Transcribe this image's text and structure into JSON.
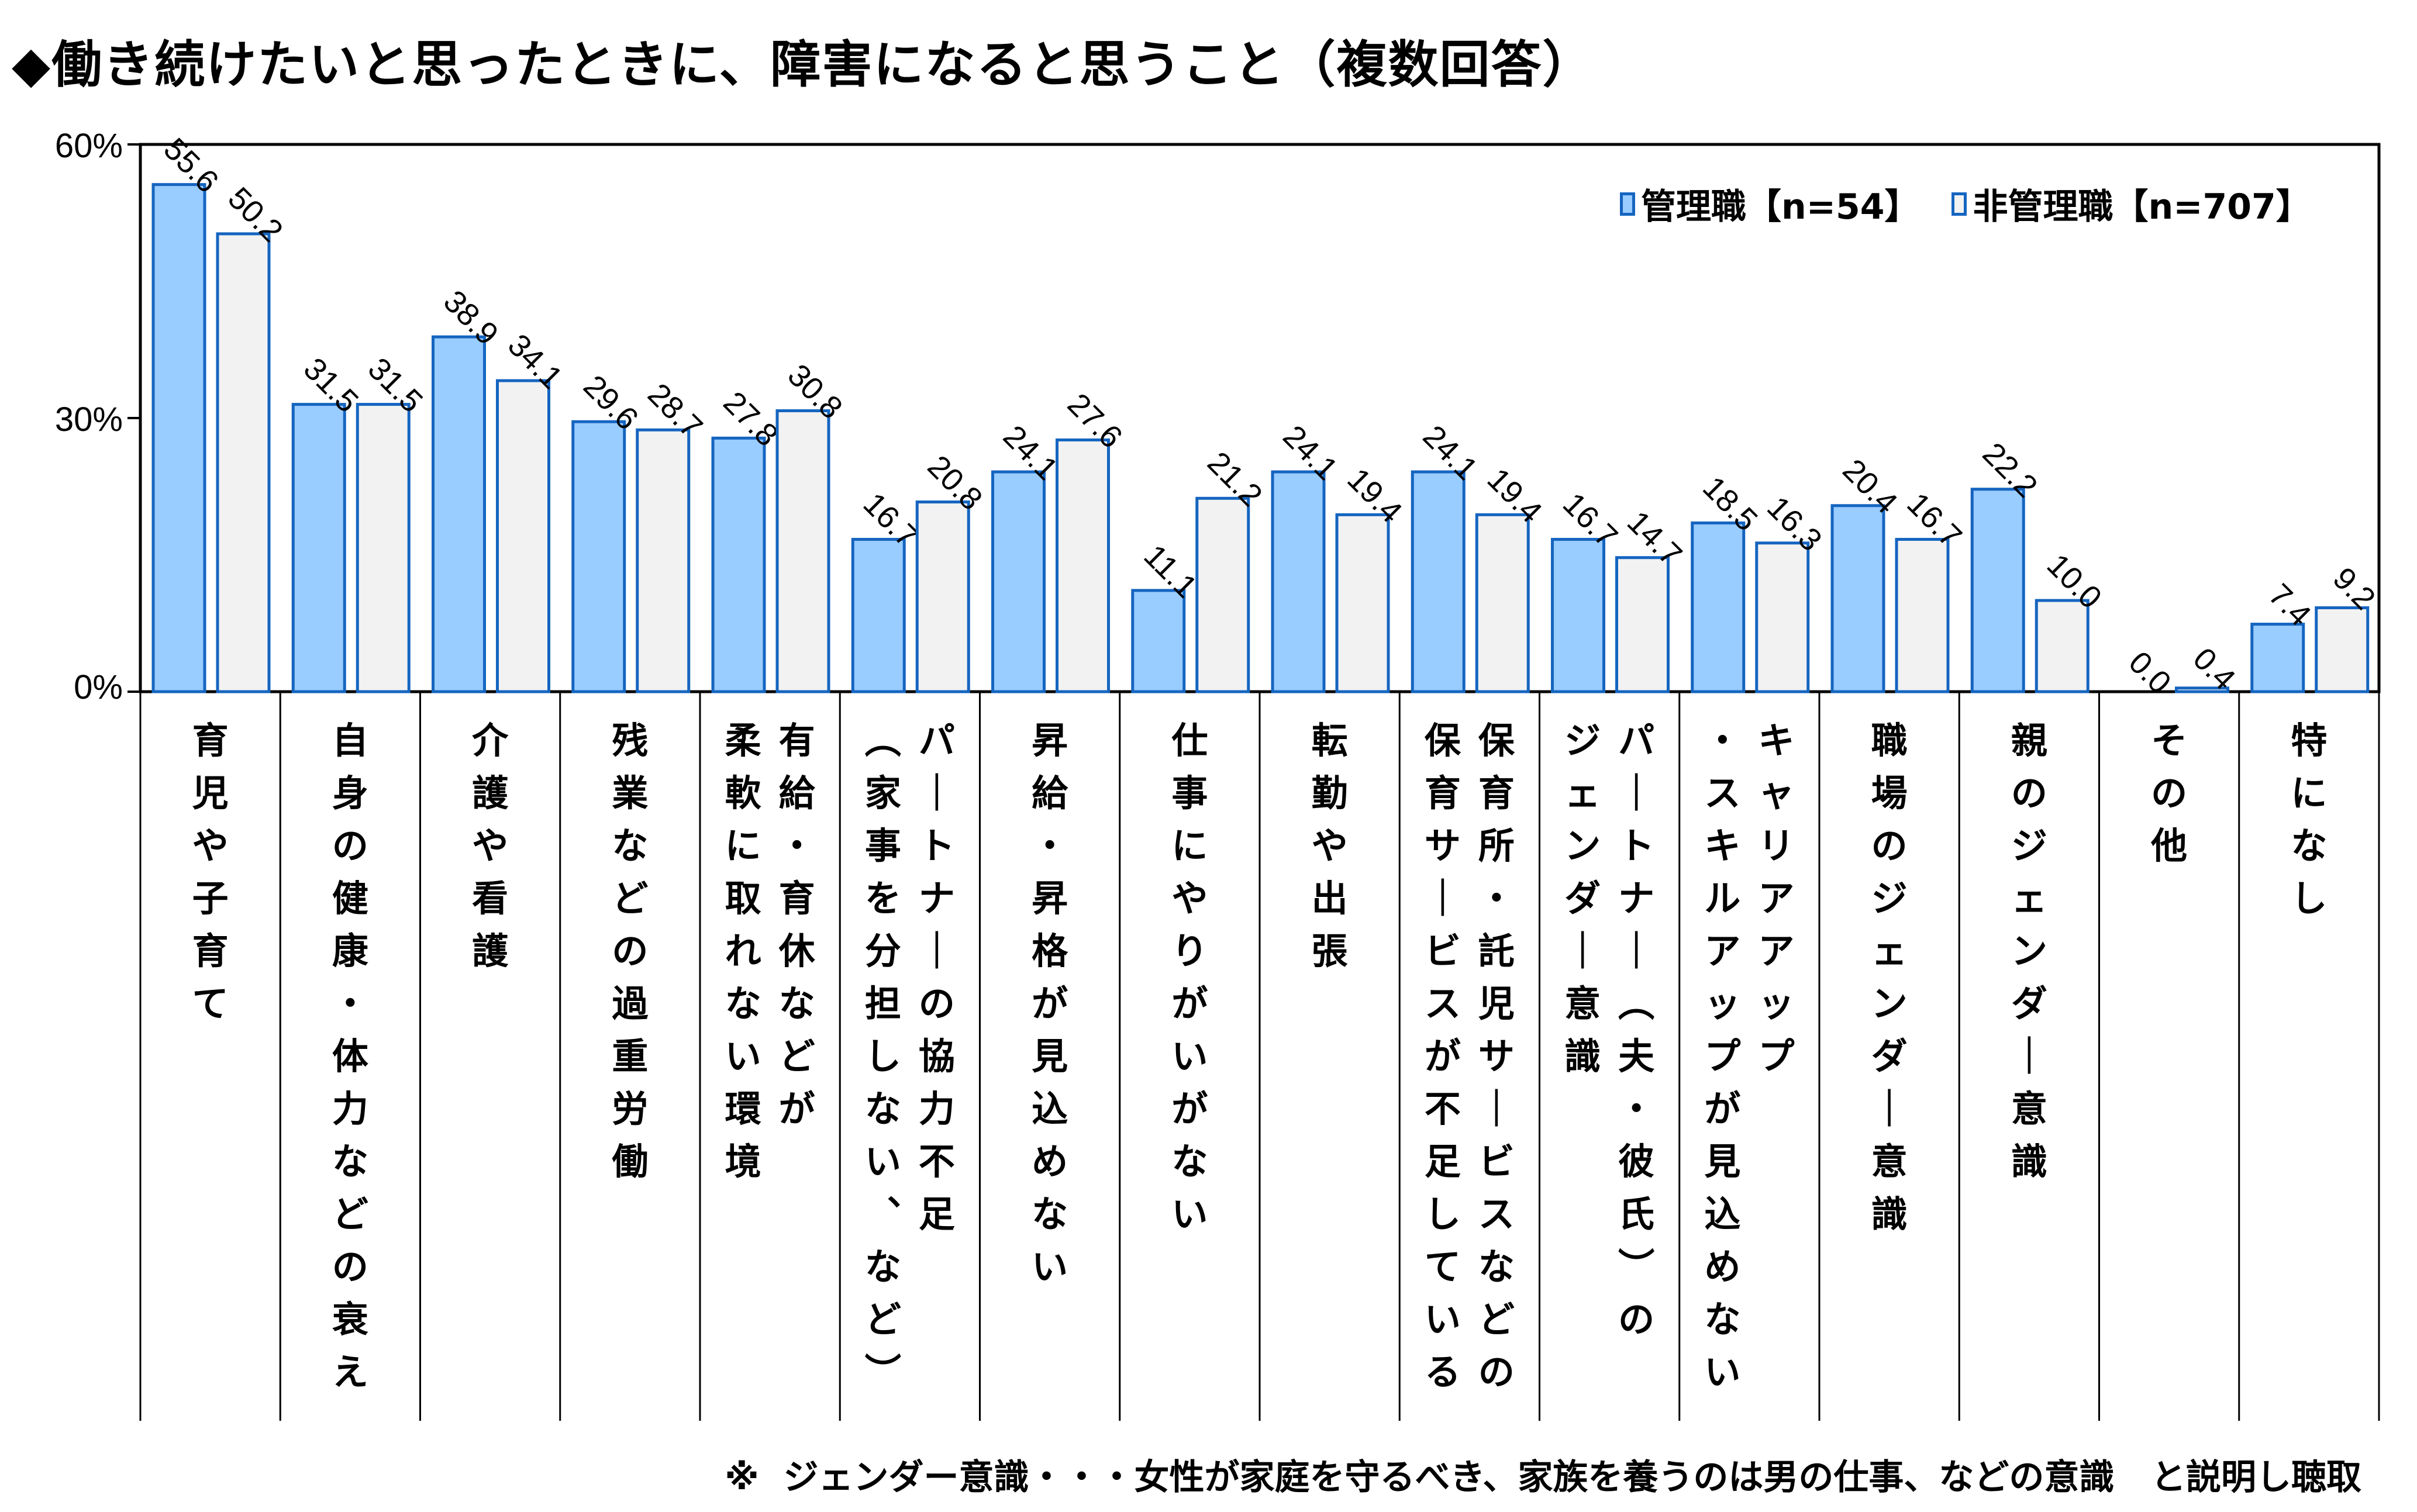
{
  "chart_data": {
    "type": "bar",
    "title": "◆働き続けたいと思ったときに、障害になると思うこと（複数回答）",
    "xlabel": "",
    "ylabel": "",
    "ylim": [
      0,
      60
    ],
    "yticks": [
      "0%",
      "30%",
      "60%"
    ],
    "categories": [
      "育児や子育て",
      "自身の健康・体力などの衰え",
      "介護や看護",
      "残業などの過重労働",
      "有給・育休などが柔軟に取れない環境",
      "パートナーの協力不足（家事を分担しない、など）",
      "昇給・昇格が見込めない",
      "仕事にやりがいがない",
      "転勤や出張",
      "保育所・託児サービスなどの保育サービスが不足している",
      "パートナー（夫・彼氏）のジェンダー意識",
      "キャリアアップ・スキルアップが見込めない",
      "職場のジェンダー意識",
      "親のジェンダー意識",
      "その他",
      "特になし"
    ],
    "label_columns": [
      [
        "育児や子育て"
      ],
      [
        "自身の健康・体力などの衰え"
      ],
      [
        "介護や看護"
      ],
      [
        "残業などの過重労働"
      ],
      [
        "有給・育休などが",
        "柔軟に取れない環境"
      ],
      [
        "パートナーの協力不足",
        "（家事を分担しない、など）"
      ],
      [
        "昇給・昇格が見込めない"
      ],
      [
        "仕事にやりがいがない"
      ],
      [
        "転勤や出張"
      ],
      [
        "保育所・託児サービスなどの",
        "保育サービスが不足している"
      ],
      [
        "パートナー（夫・彼氏）の",
        "ジェンダー意識"
      ],
      [
        "キャリアアップ",
        "・スキルアップが見込めない"
      ],
      [
        "職場のジェンダー意識"
      ],
      [
        "親のジェンダー意識"
      ],
      [
        "その他"
      ],
      [
        "特になし"
      ]
    ],
    "series": [
      {
        "name": "管理職【n=54】",
        "values": [
          55.6,
          31.5,
          38.9,
          29.6,
          27.8,
          16.7,
          24.1,
          11.1,
          24.1,
          24.1,
          16.7,
          18.5,
          20.4,
          22.2,
          0.0,
          7.4
        ],
        "labels": [
          "55.6",
          "31.5",
          "38.9",
          "29.6",
          "27.8",
          "16.7",
          "24.1",
          "11.1",
          "24.1",
          "24.1",
          "16.7",
          "18.5",
          "20.4",
          "22.2",
          "0.0",
          "7.4"
        ],
        "color": "#99CCFF"
      },
      {
        "name": "非管理職【n=707】",
        "values": [
          50.2,
          31.5,
          34.1,
          28.7,
          30.8,
          20.8,
          27.6,
          21.2,
          19.4,
          19.4,
          14.7,
          16.3,
          16.7,
          10.0,
          0.4,
          9.2
        ],
        "labels": [
          "50.2",
          "31.5",
          "34.1",
          "28.7",
          "30.8",
          "20.8",
          "27.6",
          "21.2",
          "19.4",
          "19.4",
          "14.7",
          "16.3",
          "16.7",
          "10.0",
          "0.4",
          "9.2"
        ],
        "color": "#F2F2F2"
      }
    ],
    "bar_border_color": "#1565C0",
    "legend_position": "top-right",
    "grid": false
  },
  "footnote": "※  ジェンダー意識・・・女性が家庭を守るべき、家族を養うのは男の仕事、などの意識   と説明し聴取"
}
